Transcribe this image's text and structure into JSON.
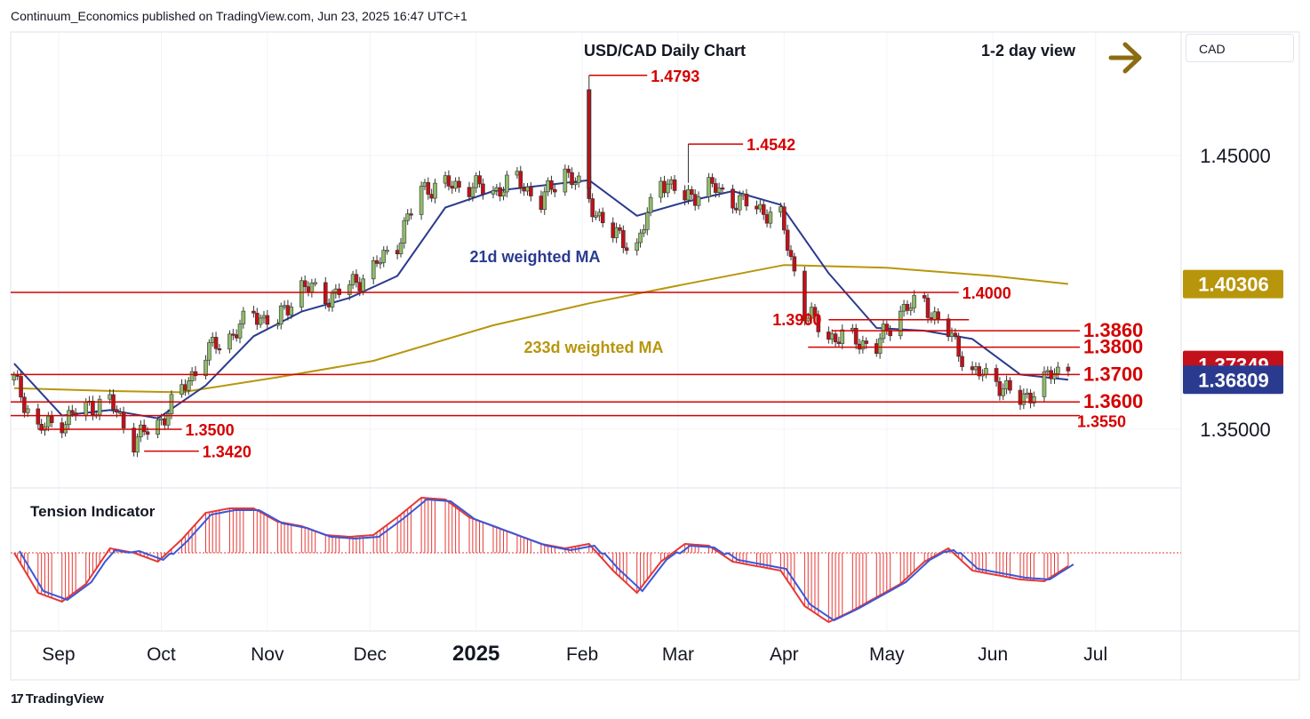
{
  "header": {
    "published": "Continuum_Economics published on TradingView.com, Jun 23, 2025 16:47 UTC+1"
  },
  "branding": {
    "logo_mark": "17",
    "logo_text": "TradingView"
  },
  "currency_selector": {
    "value": "CAD"
  },
  "colors": {
    "up_candle": "#8fbc6a",
    "down_candle": "#c2111a",
    "wma21": "#2a3b8f",
    "wma233": "#b8960c",
    "level_line": "#d50000",
    "badge_price": "#c2111a",
    "badge_wma233": "#b8960c",
    "badge_wma21": "#2a3b8f",
    "arrow": "#8b6c10",
    "tension_fill": "#e53935",
    "tension_line": "#3a57d9"
  },
  "chart_data": {
    "type": "candlestick",
    "title": "USD/CAD Daily Chart",
    "view": "1-2 day view",
    "view_arrow_icon": "arrow-right-icon",
    "y_ticks": [
      "1.45000",
      "1.35000"
    ],
    "x_ticks": [
      "Sep",
      "Oct",
      "Nov",
      "Dec",
      "2025",
      "Feb",
      "Mar",
      "Apr",
      "May",
      "Jun",
      "Jul"
    ],
    "price_badges": {
      "wma233": "1.40306",
      "last_price": "1.37349",
      "wma21": "1.36809"
    },
    "ma_labels": {
      "wma21": "21d weighted MA",
      "wma233": "233d weighted MA"
    },
    "levels": [
      {
        "label": "1.4793",
        "value": 1.4793
      },
      {
        "label": "1.4542",
        "value": 1.4542
      },
      {
        "label": "1.4000",
        "value": 1.4
      },
      {
        "label": "1.3900",
        "value": 1.39
      },
      {
        "label": "1.3860",
        "value": 1.386
      },
      {
        "label": "1.3800",
        "value": 1.38
      },
      {
        "label": "1.3700",
        "value": 1.37
      },
      {
        "label": "1.3600",
        "value": 1.36
      },
      {
        "label": "1.3550",
        "value": 1.355
      },
      {
        "label": "1.3500",
        "value": 1.35
      },
      {
        "label": "1.3420",
        "value": 1.342
      }
    ],
    "price_path": [
      [
        "2024-08-19",
        1.368
      ],
      [
        "2024-08-26",
        1.35
      ],
      [
        "2024-09-02",
        1.353
      ],
      [
        "2024-09-09",
        1.358
      ],
      [
        "2024-09-16",
        1.36
      ],
      [
        "2024-09-23",
        1.346
      ],
      [
        "2024-09-30",
        1.352
      ],
      [
        "2024-10-07",
        1.364
      ],
      [
        "2024-10-14",
        1.378
      ],
      [
        "2024-10-21",
        1.384
      ],
      [
        "2024-10-28",
        1.392
      ],
      [
        "2024-11-04",
        1.389
      ],
      [
        "2024-11-11",
        1.403
      ],
      [
        "2024-11-18",
        1.398
      ],
      [
        "2024-11-25",
        1.402
      ],
      [
        "2024-12-02",
        1.409
      ],
      [
        "2024-12-09",
        1.418
      ],
      [
        "2024-12-16",
        1.438
      ],
      [
        "2024-12-23",
        1.439
      ],
      [
        "2024-12-30",
        1.439
      ],
      [
        "2025-01-06",
        1.437
      ],
      [
        "2025-01-13",
        1.441
      ],
      [
        "2025-01-20",
        1.433
      ],
      [
        "2025-01-27",
        1.445
      ],
      [
        "2025-02-03",
        1.433
      ],
      [
        "2025-02-10",
        1.421
      ],
      [
        "2025-02-17",
        1.417
      ],
      [
        "2025-02-24",
        1.442
      ],
      [
        "2025-03-03",
        1.434
      ],
      [
        "2025-03-10",
        1.439
      ],
      [
        "2025-03-17",
        1.434
      ],
      [
        "2025-03-24",
        1.431
      ],
      [
        "2025-03-31",
        1.427
      ],
      [
        "2025-04-07",
        1.393
      ],
      [
        "2025-04-14",
        1.384
      ],
      [
        "2025-04-21",
        1.383
      ],
      [
        "2025-04-28",
        1.38
      ],
      [
        "2025-05-05",
        1.394
      ],
      [
        "2025-05-12",
        1.396
      ],
      [
        "2025-05-19",
        1.385
      ],
      [
        "2025-05-26",
        1.371
      ],
      [
        "2025-06-02",
        1.368
      ],
      [
        "2025-06-09",
        1.36
      ],
      [
        "2025-06-16",
        1.368
      ],
      [
        "2025-06-23",
        1.3735
      ]
    ],
    "wma21_path": [
      [
        "2024-08-19",
        1.374
      ],
      [
        "2024-09-02",
        1.355
      ],
      [
        "2024-09-16",
        1.357
      ],
      [
        "2024-09-30",
        1.354
      ],
      [
        "2024-10-14",
        1.366
      ],
      [
        "2024-10-28",
        1.384
      ],
      [
        "2024-11-11",
        1.393
      ],
      [
        "2024-11-25",
        1.398
      ],
      [
        "2024-12-09",
        1.406
      ],
      [
        "2024-12-23",
        1.431
      ],
      [
        "2025-01-06",
        1.437
      ],
      [
        "2025-01-20",
        1.439
      ],
      [
        "2025-02-03",
        1.441
      ],
      [
        "2025-02-17",
        1.428
      ],
      [
        "2025-03-03",
        1.433
      ],
      [
        "2025-03-17",
        1.437
      ],
      [
        "2025-03-31",
        1.432
      ],
      [
        "2025-04-14",
        1.407
      ],
      [
        "2025-04-28",
        1.387
      ],
      [
        "2025-05-12",
        1.386
      ],
      [
        "2025-05-26",
        1.383
      ],
      [
        "2025-06-09",
        1.37
      ],
      [
        "2025-06-23",
        1.3681
      ]
    ],
    "wma233_path": [
      [
        "2024-08-19",
        1.365
      ],
      [
        "2024-09-16",
        1.364
      ],
      [
        "2024-10-07",
        1.3635
      ],
      [
        "2024-11-04",
        1.369
      ],
      [
        "2024-12-02",
        1.375
      ],
      [
        "2025-01-06",
        1.388
      ],
      [
        "2025-02-03",
        1.396
      ],
      [
        "2025-03-03",
        1.403
      ],
      [
        "2025-04-01",
        1.41
      ],
      [
        "2025-05-01",
        1.409
      ],
      [
        "2025-06-01",
        1.406
      ],
      [
        "2025-06-23",
        1.4031
      ]
    ],
    "tension_indicator": {
      "title": "Tension Indicator",
      "values": [
        [
          "2024-08-19",
          0.0
        ],
        [
          "2024-08-26",
          -0.45
        ],
        [
          "2024-09-02",
          -0.55
        ],
        [
          "2024-09-09",
          -0.35
        ],
        [
          "2024-09-16",
          0.05
        ],
        [
          "2024-09-23",
          0.0
        ],
        [
          "2024-09-30",
          -0.1
        ],
        [
          "2024-10-07",
          0.15
        ],
        [
          "2024-10-14",
          0.45
        ],
        [
          "2024-10-21",
          0.5
        ],
        [
          "2024-10-28",
          0.5
        ],
        [
          "2024-11-04",
          0.35
        ],
        [
          "2024-11-11",
          0.3
        ],
        [
          "2024-11-18",
          0.2
        ],
        [
          "2024-11-25",
          0.18
        ],
        [
          "2024-12-02",
          0.2
        ],
        [
          "2024-12-09",
          0.4
        ],
        [
          "2024-12-16",
          0.62
        ],
        [
          "2024-12-23",
          0.6
        ],
        [
          "2024-12-30",
          0.4
        ],
        [
          "2025-01-06",
          0.3
        ],
        [
          "2025-01-13",
          0.2
        ],
        [
          "2025-01-20",
          0.1
        ],
        [
          "2025-01-27",
          0.05
        ],
        [
          "2025-02-03",
          0.1
        ],
        [
          "2025-02-10",
          -0.2
        ],
        [
          "2025-02-17",
          -0.45
        ],
        [
          "2025-02-24",
          -0.1
        ],
        [
          "2025-03-03",
          0.1
        ],
        [
          "2025-03-10",
          0.08
        ],
        [
          "2025-03-17",
          -0.1
        ],
        [
          "2025-03-24",
          -0.15
        ],
        [
          "2025-03-31",
          -0.2
        ],
        [
          "2025-04-07",
          -0.6
        ],
        [
          "2025-04-14",
          -0.78
        ],
        [
          "2025-04-21",
          -0.65
        ],
        [
          "2025-04-28",
          -0.5
        ],
        [
          "2025-05-05",
          -0.35
        ],
        [
          "2025-05-12",
          -0.1
        ],
        [
          "2025-05-19",
          0.05
        ],
        [
          "2025-05-26",
          -0.2
        ],
        [
          "2025-06-02",
          -0.25
        ],
        [
          "2025-06-09",
          -0.3
        ],
        [
          "2025-06-16",
          -0.32
        ],
        [
          "2025-06-23",
          -0.15
        ]
      ]
    }
  }
}
